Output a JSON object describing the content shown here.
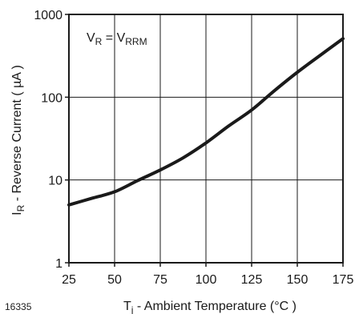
{
  "figure_id": "16335",
  "chart_data": {
    "type": "line",
    "x_scale": "linear",
    "y_scale": "log",
    "xlim": [
      25,
      175
    ],
    "ylim": [
      1,
      1000
    ],
    "grid": true,
    "x_ticks": [
      25,
      50,
      75,
      100,
      125,
      150,
      175
    ],
    "x_tick_labels": [
      "25",
      "50",
      "75",
      "100",
      "125",
      "150",
      "175"
    ],
    "y_ticks": [
      1,
      10,
      100,
      1000
    ],
    "y_tick_labels": [
      "1",
      "10",
      "100",
      "1000"
    ],
    "xlabel": {
      "base": "T",
      "sub": "j",
      "rest": " - Ambient Temperature (°C )"
    },
    "ylabel": {
      "base": "I",
      "sub": "R",
      "rest": " - Reverse Current ( µA )"
    },
    "annotation": {
      "lhs_base": "V",
      "lhs_sub": "R",
      "eq": " = V",
      "rhs_sub": "RRM"
    },
    "series": [
      {
        "x": [
          25,
          37.5,
          50,
          62.5,
          75,
          87.5,
          100,
          112.5,
          125,
          137.5,
          150,
          162.5,
          175
        ],
        "y": [
          5,
          6,
          7.2,
          9.8,
          13.2,
          18.5,
          28,
          45,
          70,
          120,
          200,
          320,
          510
        ],
        "color": "#1a1a1a"
      }
    ]
  }
}
